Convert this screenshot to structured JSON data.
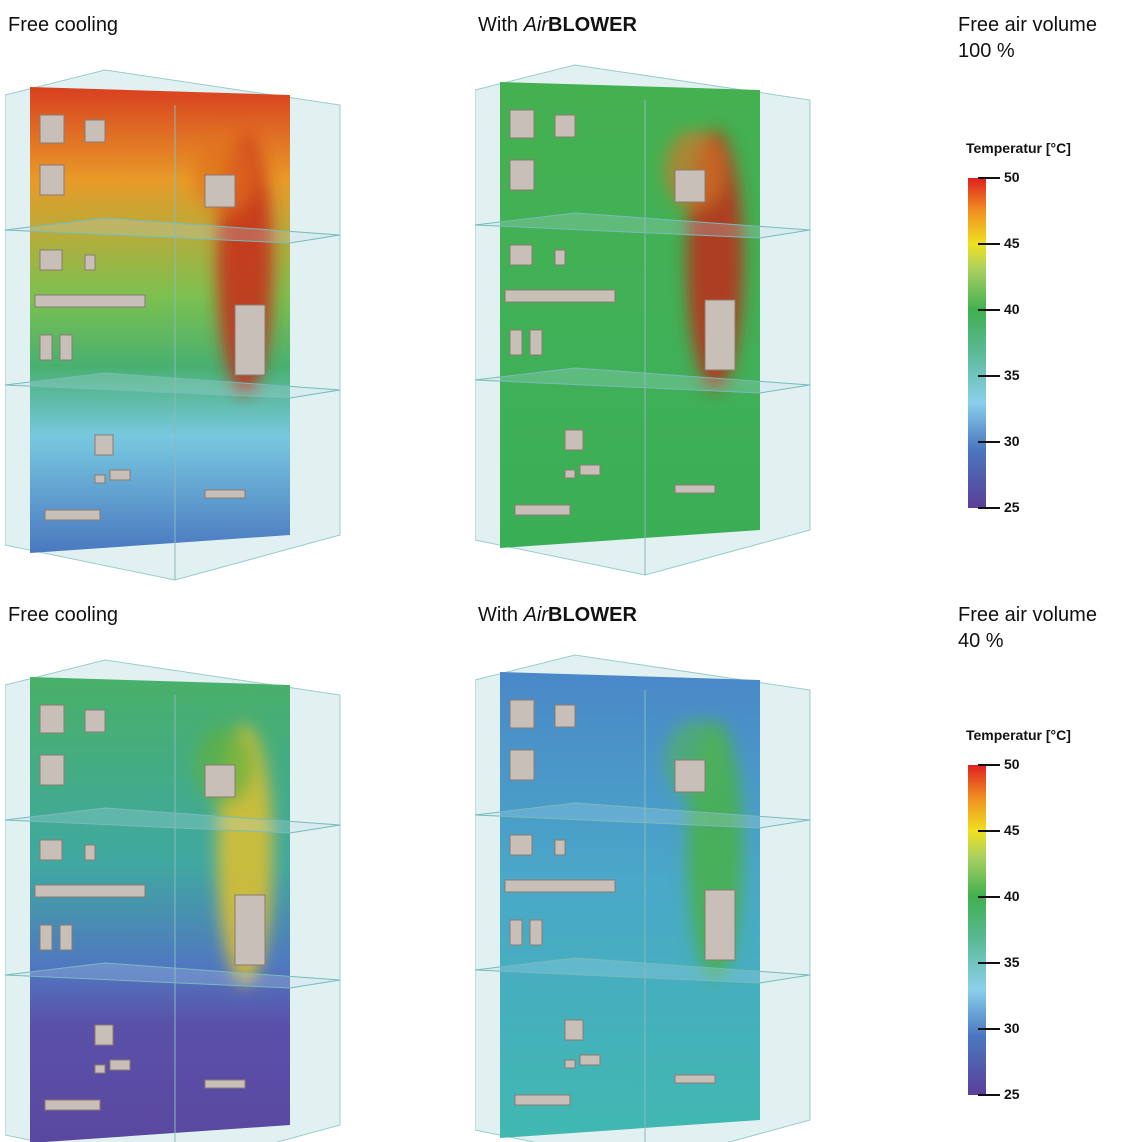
{
  "panels": [
    {
      "left_label": "Free cooling",
      "middle_label": {
        "prefix": "With ",
        "italic": "Air",
        "bold": "BLOWER"
      },
      "volume_label": "Free air volume",
      "volume_value": "100 %",
      "legend": {
        "title": "Temperatur [°C]",
        "ticks": [
          50,
          45,
          40,
          35,
          30,
          25
        ]
      }
    },
    {
      "left_label": "Free cooling",
      "middle_label": {
        "prefix": "With ",
        "italic": "Air",
        "bold": "BLOWER"
      },
      "volume_label": "Free air volume",
      "volume_value": "40 %",
      "legend": {
        "title": "Temperatur [°C]",
        "ticks": [
          50,
          45,
          40,
          35,
          30,
          25
        ]
      }
    }
  ]
}
